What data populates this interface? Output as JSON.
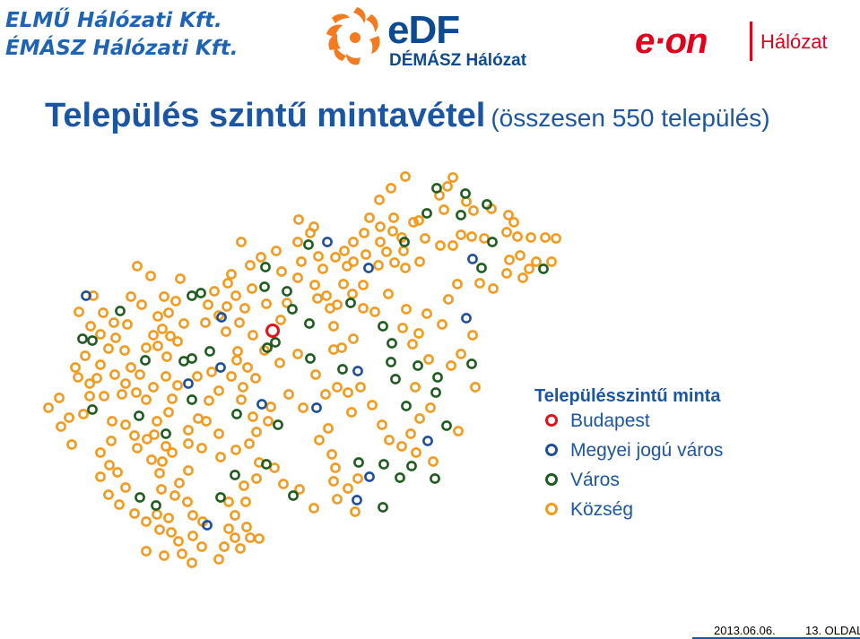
{
  "logos": {
    "elmu_line1": "ELMŰ Hálózati Kft.",
    "elmu_line2": "ÉMÁSZ Hálózati Kft.",
    "edf_name": "eDF",
    "edf_sub": "DÉMÁSZ Hálózat",
    "eon_name": "e·on",
    "eon_sub": "Hálózat"
  },
  "title": {
    "main": "Település szintű mintavétel",
    "sub": "(összesen 550 település)"
  },
  "legend": {
    "title": "Településszintű minta",
    "items": [
      {
        "key": "budapest",
        "label": "Budapest",
        "color": "#e2131b"
      },
      {
        "key": "megyei",
        "label": "Megyei jogú város",
        "color": "#1f4f9a"
      },
      {
        "key": "varos",
        "label": "Város",
        "color": "#1f5c1f"
      },
      {
        "key": "kozseg",
        "label": "Község",
        "color": "#f39a1f"
      }
    ]
  },
  "map_data": {
    "budapest": [
      [
        304,
        369
      ]
    ],
    "megyei": [
      [
        96,
        330
      ],
      [
        247,
        354
      ],
      [
        365,
        270
      ],
      [
        411,
        299
      ],
      [
        527,
        289
      ],
      [
        520,
        355
      ],
      [
        210,
        428
      ],
      [
        246,
        410
      ],
      [
        399,
        414
      ],
      [
        292,
        451
      ],
      [
        353,
        455
      ],
      [
        477,
        492
      ],
      [
        412,
        532
      ],
      [
        398,
        558
      ],
      [
        231,
        586
      ]
    ],
    "varos": [
      [
        296,
        298
      ],
      [
        295,
        320
      ],
      [
        344,
        273
      ],
      [
        451,
        270
      ],
      [
        487,
        210
      ],
      [
        519,
        216
      ],
      [
        543,
        228
      ],
      [
        476,
        238
      ],
      [
        537,
        299
      ],
      [
        549,
        270
      ],
      [
        514,
        240
      ],
      [
        606,
        300
      ],
      [
        214,
        330
      ],
      [
        224,
        327
      ],
      [
        320,
        325
      ],
      [
        326,
        345
      ],
      [
        345,
        361
      ],
      [
        346,
        400
      ],
      [
        391,
        338
      ],
      [
        427,
        364
      ],
      [
        437,
        383
      ],
      [
        436,
        404
      ],
      [
        441,
        423
      ],
      [
        382,
        412
      ],
      [
        466,
        408
      ],
      [
        488,
        421
      ],
      [
        453,
        453
      ],
      [
        486,
        438
      ],
      [
        498,
        475
      ],
      [
        526,
        406
      ],
      [
        459,
        520
      ],
      [
        485,
        534
      ],
      [
        428,
        518
      ],
      [
        400,
        516
      ],
      [
        446,
        533
      ],
      [
        427,
        566
      ],
      [
        310,
        474
      ],
      [
        264,
        462
      ],
      [
        234,
        392
      ],
      [
        214,
        400
      ],
      [
        214,
        446
      ],
      [
        297,
        518
      ],
      [
        246,
        555
      ],
      [
        262,
        530
      ],
      [
        327,
        553
      ],
      [
        156,
        555
      ],
      [
        185,
        484
      ],
      [
        155,
        464
      ],
      [
        103,
        457
      ],
      [
        103,
        380
      ],
      [
        92,
        378
      ],
      [
        134,
        347
      ],
      [
        162,
        402
      ],
      [
        205,
        403
      ],
      [
        298,
        388
      ],
      [
        307,
        382
      ],
      [
        174,
        564
      ]
    ],
    "kozseg": [
      [
        452,
        197
      ],
      [
        505,
        198
      ],
      [
        499,
        208
      ],
      [
        490,
        218
      ],
      [
        436,
        210
      ],
      [
        423,
        223
      ],
      [
        439,
        243
      ],
      [
        461,
        248
      ],
      [
        495,
        234
      ],
      [
        520,
        225
      ],
      [
        528,
        235
      ],
      [
        548,
        233
      ],
      [
        567,
        240
      ],
      [
        573,
        248
      ],
      [
        565,
        259
      ],
      [
        577,
        264
      ],
      [
        592,
        265
      ],
      [
        608,
        265
      ],
      [
        620,
        266
      ],
      [
        580,
        285
      ],
      [
        568,
        290
      ],
      [
        598,
        292
      ],
      [
        615,
        292
      ],
      [
        412,
        243
      ],
      [
        424,
        253
      ],
      [
        438,
        258
      ],
      [
        448,
        265
      ],
      [
        467,
        246
      ],
      [
        474,
        266
      ],
      [
        491,
        274
      ],
      [
        505,
        274
      ],
      [
        514,
        262
      ],
      [
        526,
        264
      ],
      [
        540,
        266
      ],
      [
        450,
        280
      ],
      [
        452,
        299
      ],
      [
        468,
        292
      ],
      [
        406,
        260
      ],
      [
        394,
        270
      ],
      [
        384,
        280
      ],
      [
        394,
        292
      ],
      [
        408,
        284
      ],
      [
        422,
        296
      ],
      [
        440,
        293
      ],
      [
        424,
        270
      ],
      [
        431,
        281
      ],
      [
        387,
        297
      ],
      [
        374,
        287
      ],
      [
        355,
        286
      ],
      [
        346,
        260
      ],
      [
        332,
        270
      ],
      [
        350,
        253
      ],
      [
        333,
        245
      ],
      [
        360,
        300
      ],
      [
        383,
        317
      ],
      [
        405,
        318
      ],
      [
        433,
        328
      ],
      [
        393,
        328
      ],
      [
        376,
        340
      ],
      [
        372,
        364
      ],
      [
        381,
        388
      ],
      [
        332,
        395
      ],
      [
        352,
        418
      ],
      [
        372,
        390
      ],
      [
        394,
        378
      ],
      [
        405,
        344
      ],
      [
        418,
        348
      ],
      [
        449,
        366
      ],
      [
        460,
        384
      ],
      [
        467,
        372
      ],
      [
        500,
        334
      ],
      [
        510,
        317
      ],
      [
        535,
        316
      ],
      [
        550,
        322
      ],
      [
        565,
        305
      ],
      [
        583,
        310
      ],
      [
        590,
        300
      ],
      [
        527,
        374
      ],
      [
        514,
        395
      ],
      [
        503,
        408
      ],
      [
        478,
        401
      ],
      [
        463,
        432
      ],
      [
        468,
        467
      ],
      [
        480,
        455
      ],
      [
        511,
        481
      ],
      [
        530,
        432
      ],
      [
        493,
        362
      ],
      [
        476,
        350
      ],
      [
        453,
        345
      ],
      [
        336,
        292
      ],
      [
        308,
        280
      ],
      [
        279,
        296
      ],
      [
        269,
        270
      ],
      [
        291,
        287
      ],
      [
        314,
        303
      ],
      [
        332,
        310
      ],
      [
        351,
        318
      ],
      [
        364,
        330
      ],
      [
        368,
        344
      ],
      [
        354,
        333
      ],
      [
        320,
        338
      ],
      [
        313,
        357
      ],
      [
        297,
        339
      ],
      [
        273,
        344
      ],
      [
        263,
        330
      ],
      [
        267,
        360
      ],
      [
        252,
        370
      ],
      [
        244,
        352
      ],
      [
        229,
        360
      ],
      [
        253,
        342
      ],
      [
        281,
        322
      ],
      [
        282,
        374
      ],
      [
        295,
        391
      ],
      [
        312,
        405
      ],
      [
        264,
        402
      ],
      [
        265,
        392
      ],
      [
        276,
        410
      ],
      [
        258,
        420
      ],
      [
        285,
        422
      ],
      [
        271,
        432
      ],
      [
        269,
        446
      ],
      [
        244,
        436
      ],
      [
        236,
        415
      ],
      [
        220,
        420
      ],
      [
        233,
        447
      ],
      [
        230,
        470
      ],
      [
        244,
        484
      ],
      [
        221,
        467
      ],
      [
        210,
        480
      ],
      [
        210,
        495
      ],
      [
        225,
        500
      ],
      [
        246,
        510
      ],
      [
        263,
        502
      ],
      [
        278,
        495
      ],
      [
        286,
        482
      ],
      [
        299,
        470
      ],
      [
        282,
        465
      ],
      [
        302,
        454
      ],
      [
        322,
        440
      ],
      [
        338,
        455
      ],
      [
        363,
        440
      ],
      [
        376,
        432
      ],
      [
        388,
        438
      ],
      [
        402,
        432
      ],
      [
        415,
        452
      ],
      [
        426,
        474
      ],
      [
        434,
        491
      ],
      [
        448,
        498
      ],
      [
        464,
        505
      ],
      [
        483,
        515
      ],
      [
        458,
        484
      ],
      [
        392,
        460
      ],
      [
        366,
        478
      ],
      [
        356,
        491
      ],
      [
        370,
        507
      ],
      [
        374,
        522
      ],
      [
        372,
        537
      ],
      [
        376,
        557
      ],
      [
        396,
        571
      ],
      [
        388,
        545
      ],
      [
        399,
        534
      ],
      [
        350,
        567
      ],
      [
        334,
        546
      ],
      [
        316,
        540
      ],
      [
        306,
        522
      ],
      [
        289,
        516
      ],
      [
        286,
        534
      ],
      [
        272,
        542
      ],
      [
        274,
        560
      ],
      [
        255,
        560
      ],
      [
        262,
        575
      ],
      [
        255,
        590
      ],
      [
        275,
        588
      ],
      [
        262,
        600
      ],
      [
        250,
        610
      ],
      [
        268,
        612
      ],
      [
        279,
        600
      ],
      [
        289,
        601
      ],
      [
        244,
        624
      ],
      [
        225,
        610
      ],
      [
        215,
        598
      ],
      [
        226,
        582
      ],
      [
        215,
        575
      ],
      [
        209,
        560
      ],
      [
        195,
        553
      ],
      [
        180,
        546
      ],
      [
        178,
        528
      ],
      [
        169,
        513
      ],
      [
        153,
        500
      ],
      [
        164,
        490
      ],
      [
        150,
        486
      ],
      [
        140,
        474
      ],
      [
        125,
        470
      ],
      [
        124,
        492
      ],
      [
        112,
        505
      ],
      [
        122,
        519
      ],
      [
        131,
        527
      ],
      [
        112,
        532
      ],
      [
        121,
        552
      ],
      [
        140,
        544
      ],
      [
        133,
        563
      ],
      [
        150,
        573
      ],
      [
        163,
        582
      ],
      [
        178,
        591
      ],
      [
        191,
        594
      ],
      [
        199,
        604
      ],
      [
        183,
        620
      ],
      [
        203,
        618
      ],
      [
        214,
        628
      ],
      [
        163,
        615
      ],
      [
        188,
        578
      ],
      [
        175,
        574
      ],
      [
        200,
        539
      ],
      [
        210,
        525
      ],
      [
        192,
        505
      ],
      [
        181,
        515
      ],
      [
        185,
        498
      ],
      [
        172,
        485
      ],
      [
        175,
        470
      ],
      [
        188,
        460
      ],
      [
        192,
        445
      ],
      [
        198,
        430
      ],
      [
        185,
        420
      ],
      [
        171,
        432
      ],
      [
        163,
        446
      ],
      [
        152,
        438
      ],
      [
        136,
        440
      ],
      [
        116,
        442
      ],
      [
        100,
        442
      ],
      [
        93,
        462
      ],
      [
        77,
        466
      ],
      [
        68,
        476
      ],
      [
        80,
        496
      ],
      [
        66,
        444
      ],
      [
        54,
        455
      ],
      [
        87,
        421
      ],
      [
        84,
        410
      ],
      [
        95,
        397
      ],
      [
        112,
        407
      ],
      [
        128,
        418
      ],
      [
        140,
        428
      ],
      [
        108,
        422
      ],
      [
        100,
        428
      ],
      [
        121,
        389
      ],
      [
        112,
        373
      ],
      [
        101,
        364
      ],
      [
        88,
        348
      ],
      [
        115,
        349
      ],
      [
        127,
        360
      ],
      [
        129,
        377
      ],
      [
        139,
        391
      ],
      [
        146,
        410
      ],
      [
        156,
        418
      ],
      [
        163,
        388
      ],
      [
        171,
        374
      ],
      [
        176,
        386
      ],
      [
        186,
        398
      ],
      [
        190,
        375
      ],
      [
        181,
        367
      ],
      [
        176,
        353
      ],
      [
        158,
        340
      ],
      [
        146,
        331
      ],
      [
        153,
        297
      ],
      [
        168,
        308
      ],
      [
        183,
        331
      ],
      [
        196,
        336
      ],
      [
        205,
        361
      ],
      [
        198,
        381
      ],
      [
        232,
        340
      ],
      [
        239,
        325
      ],
      [
        254,
        316
      ],
      [
        258,
        306
      ],
      [
        201,
        311
      ],
      [
        188,
        349
      ],
      [
        104,
        330
      ],
      [
        142,
        362
      ]
    ]
  }
}
